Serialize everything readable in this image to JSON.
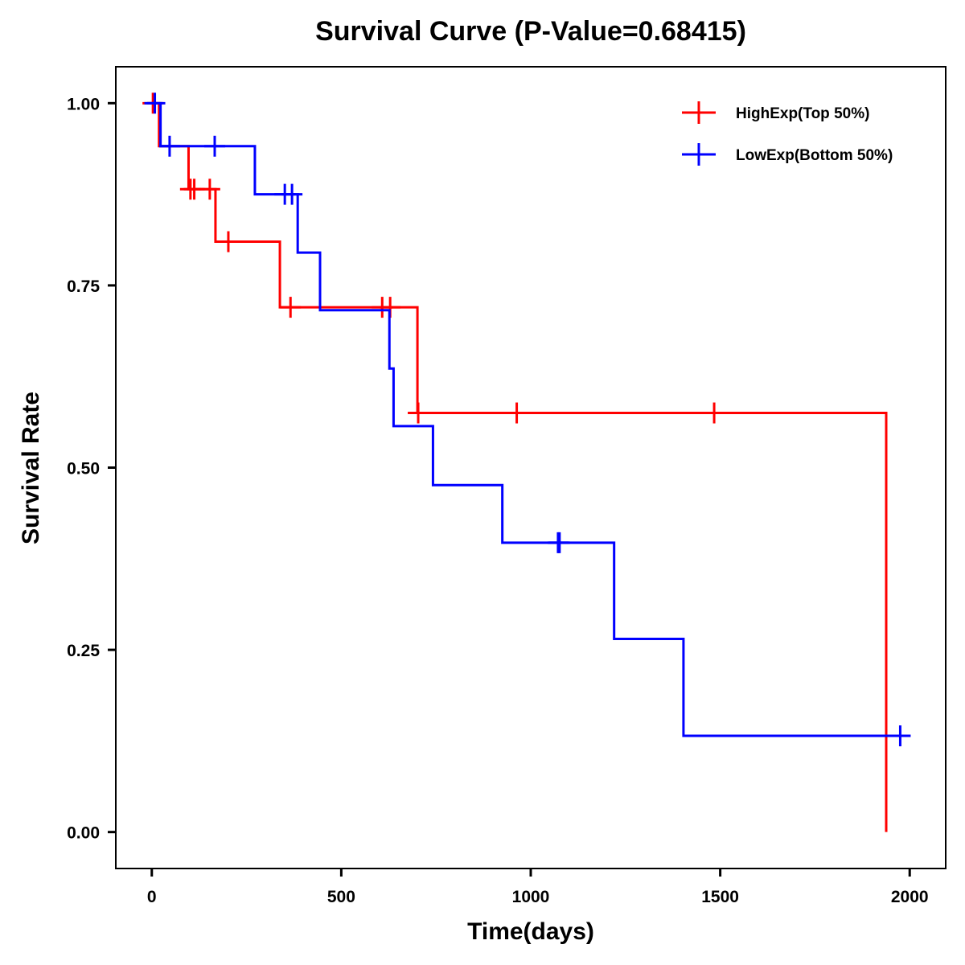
{
  "chart_data": {
    "type": "line",
    "subtype": "kaplan-meier step",
    "title": "Survival Curve (P-Value=0.68415)",
    "xlabel": "Time(days)",
    "ylabel": "Survival Rate",
    "xlim": [
      -95,
      2095
    ],
    "ylim": [
      -0.05,
      1.05
    ],
    "x_ticks": [
      0,
      500,
      1000,
      1500,
      2000
    ],
    "x_tick_labels": [
      "0",
      "500",
      "1000",
      "1500",
      "2000"
    ],
    "y_ticks": [
      0,
      0.25,
      0.5,
      0.75,
      1.0
    ],
    "y_tick_labels": [
      "0.00",
      "0.25",
      "0.50",
      "0.75",
      "1.00"
    ],
    "grid": false,
    "legend_position": "top-right",
    "series": [
      {
        "name": "HighExp(Top 50%)",
        "color": "#ff0000",
        "steps": [
          {
            "t": 0,
            "s": 1.0
          },
          {
            "t": 19,
            "s": 0.941
          },
          {
            "t": 97,
            "s": 0.882
          },
          {
            "t": 168,
            "s": 0.81
          },
          {
            "t": 338,
            "s": 0.72
          },
          {
            "t": 701,
            "s": 0.575
          },
          {
            "t": 1938,
            "s": 0.0
          }
        ],
        "end_t": 1938,
        "censors": [
          {
            "t": 3,
            "s": 1.0
          },
          {
            "t": 102,
            "s": 0.882
          },
          {
            "t": 112,
            "s": 0.882
          },
          {
            "t": 153,
            "s": 0.882
          },
          {
            "t": 202,
            "s": 0.81
          },
          {
            "t": 366,
            "s": 0.72
          },
          {
            "t": 608,
            "s": 0.72
          },
          {
            "t": 629,
            "s": 0.72
          },
          {
            "t": 703,
            "s": 0.575
          },
          {
            "t": 963,
            "s": 0.575
          },
          {
            "t": 1484,
            "s": 0.575
          }
        ]
      },
      {
        "name": "LowExp(Bottom 50%)",
        "color": "#0000ff",
        "steps": [
          {
            "t": 0,
            "s": 1.0
          },
          {
            "t": 23,
            "s": 0.941
          },
          {
            "t": 272,
            "s": 0.875
          },
          {
            "t": 385,
            "s": 0.795
          },
          {
            "t": 444,
            "s": 0.716
          },
          {
            "t": 627,
            "s": 0.636
          },
          {
            "t": 638,
            "s": 0.557
          },
          {
            "t": 742,
            "s": 0.476
          },
          {
            "t": 925,
            "s": 0.397
          },
          {
            "t": 1220,
            "s": 0.265
          },
          {
            "t": 1403,
            "s": 0.132
          }
        ],
        "end_t": 1990,
        "censors": [
          {
            "t": 8,
            "s": 1.0
          },
          {
            "t": 47,
            "s": 0.941
          },
          {
            "t": 166,
            "s": 0.941
          },
          {
            "t": 351,
            "s": 0.875
          },
          {
            "t": 370,
            "s": 0.875
          },
          {
            "t": 1072,
            "s": 0.397
          },
          {
            "t": 1076,
            "s": 0.397
          },
          {
            "t": 1975,
            "s": 0.132
          }
        ]
      }
    ]
  }
}
